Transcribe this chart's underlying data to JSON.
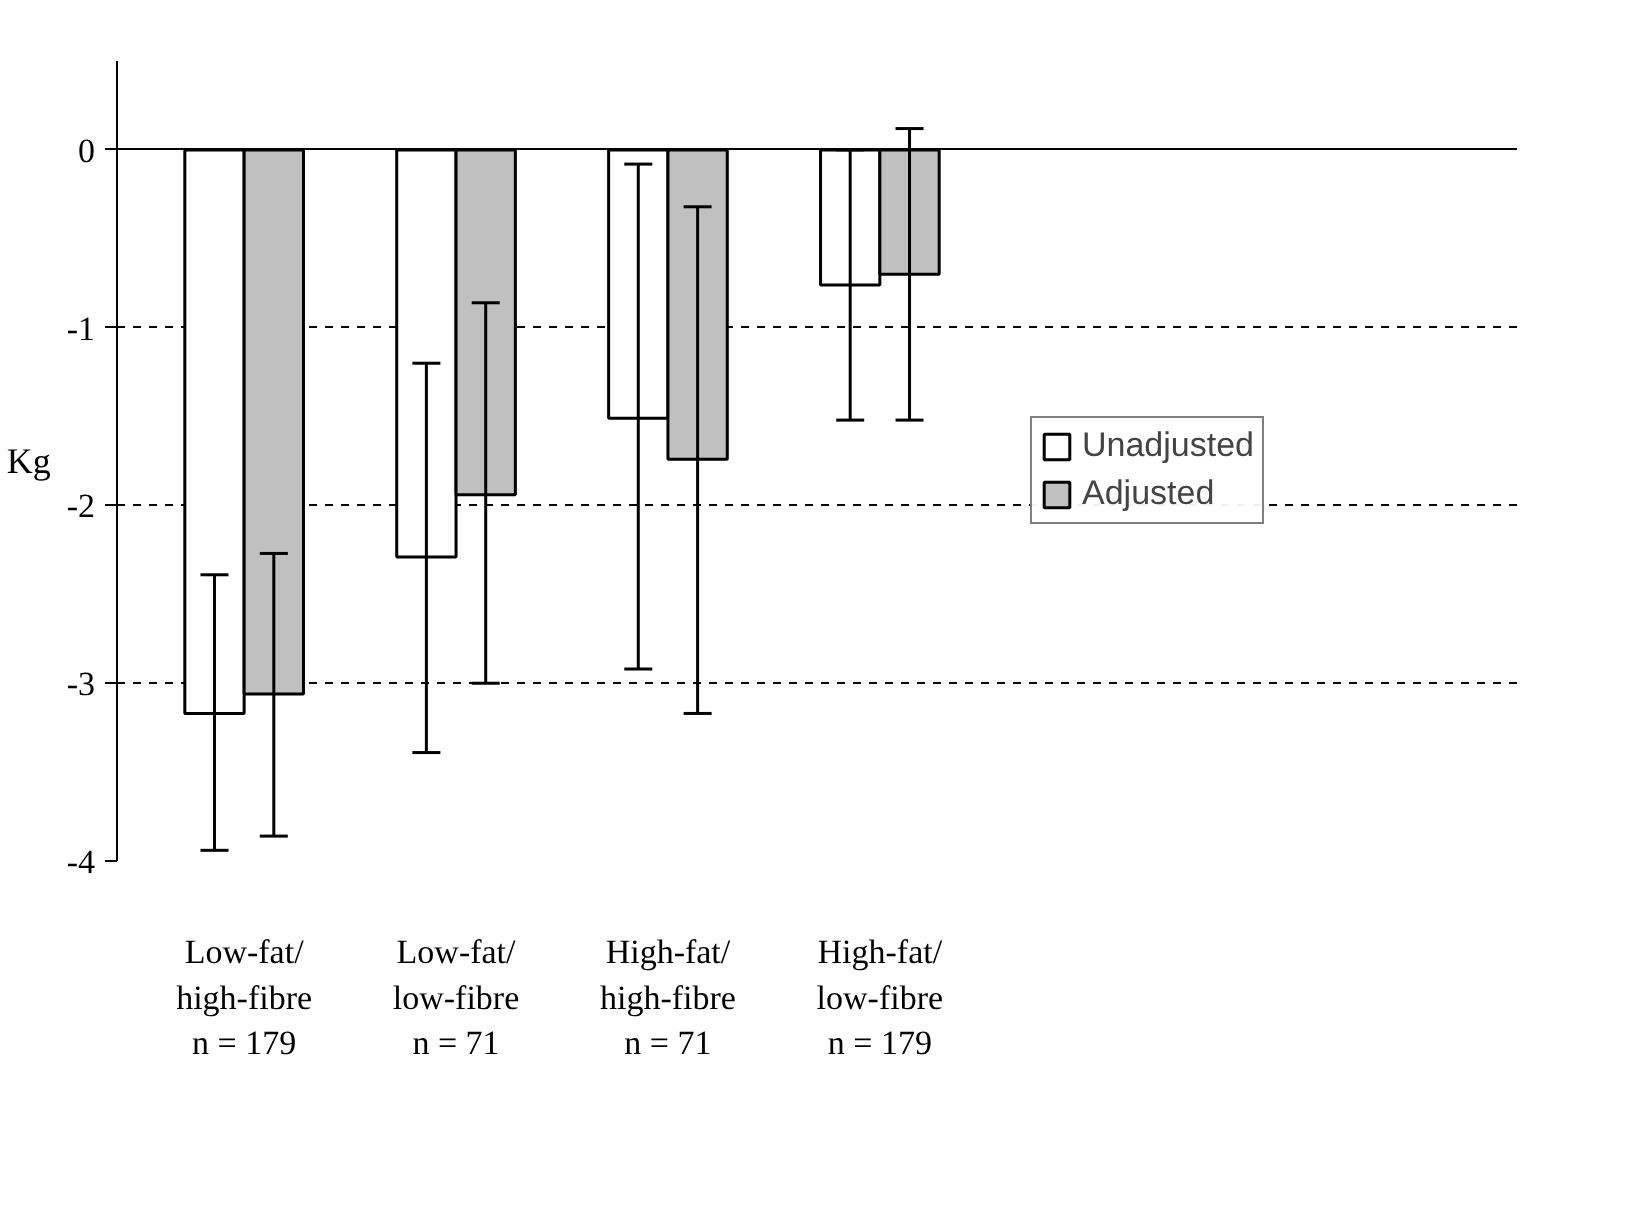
{
  "chart_data": {
    "type": "bar",
    "ylabel": "Kg",
    "categories": [
      "Low-fat/\nhigh-fibre\nn = 179",
      "Low-fat/\nlow-fibre\nn = 71",
      "High-fat/\nhigh-fibre\nn = 71",
      "High-fat/\nlow-fibre\nn = 179"
    ],
    "series": [
      {
        "name": "Unadjusted",
        "color": "#ffffff",
        "values": [
          -3.17,
          -2.29,
          -1.51,
          -0.76
        ],
        "errors": [
          [
            -3.94,
            -2.39
          ],
          [
            -3.39,
            -1.2
          ],
          [
            -2.92,
            -0.08
          ],
          [
            -1.52,
            0.0
          ]
        ]
      },
      {
        "name": "Adjusted",
        "color": "#c0c0c0",
        "values": [
          -3.06,
          -1.94,
          -1.74,
          -0.7
        ],
        "errors": [
          [
            -3.86,
            -2.27
          ],
          [
            -3.0,
            -0.86
          ],
          [
            -3.17,
            -0.32
          ],
          [
            -1.52,
            0.12
          ]
        ]
      }
    ],
    "ylim": [
      -4,
      0.5
    ],
    "yticks": [
      0,
      -1,
      -2,
      -3,
      -4
    ],
    "grid": "y",
    "legend": "right"
  }
}
